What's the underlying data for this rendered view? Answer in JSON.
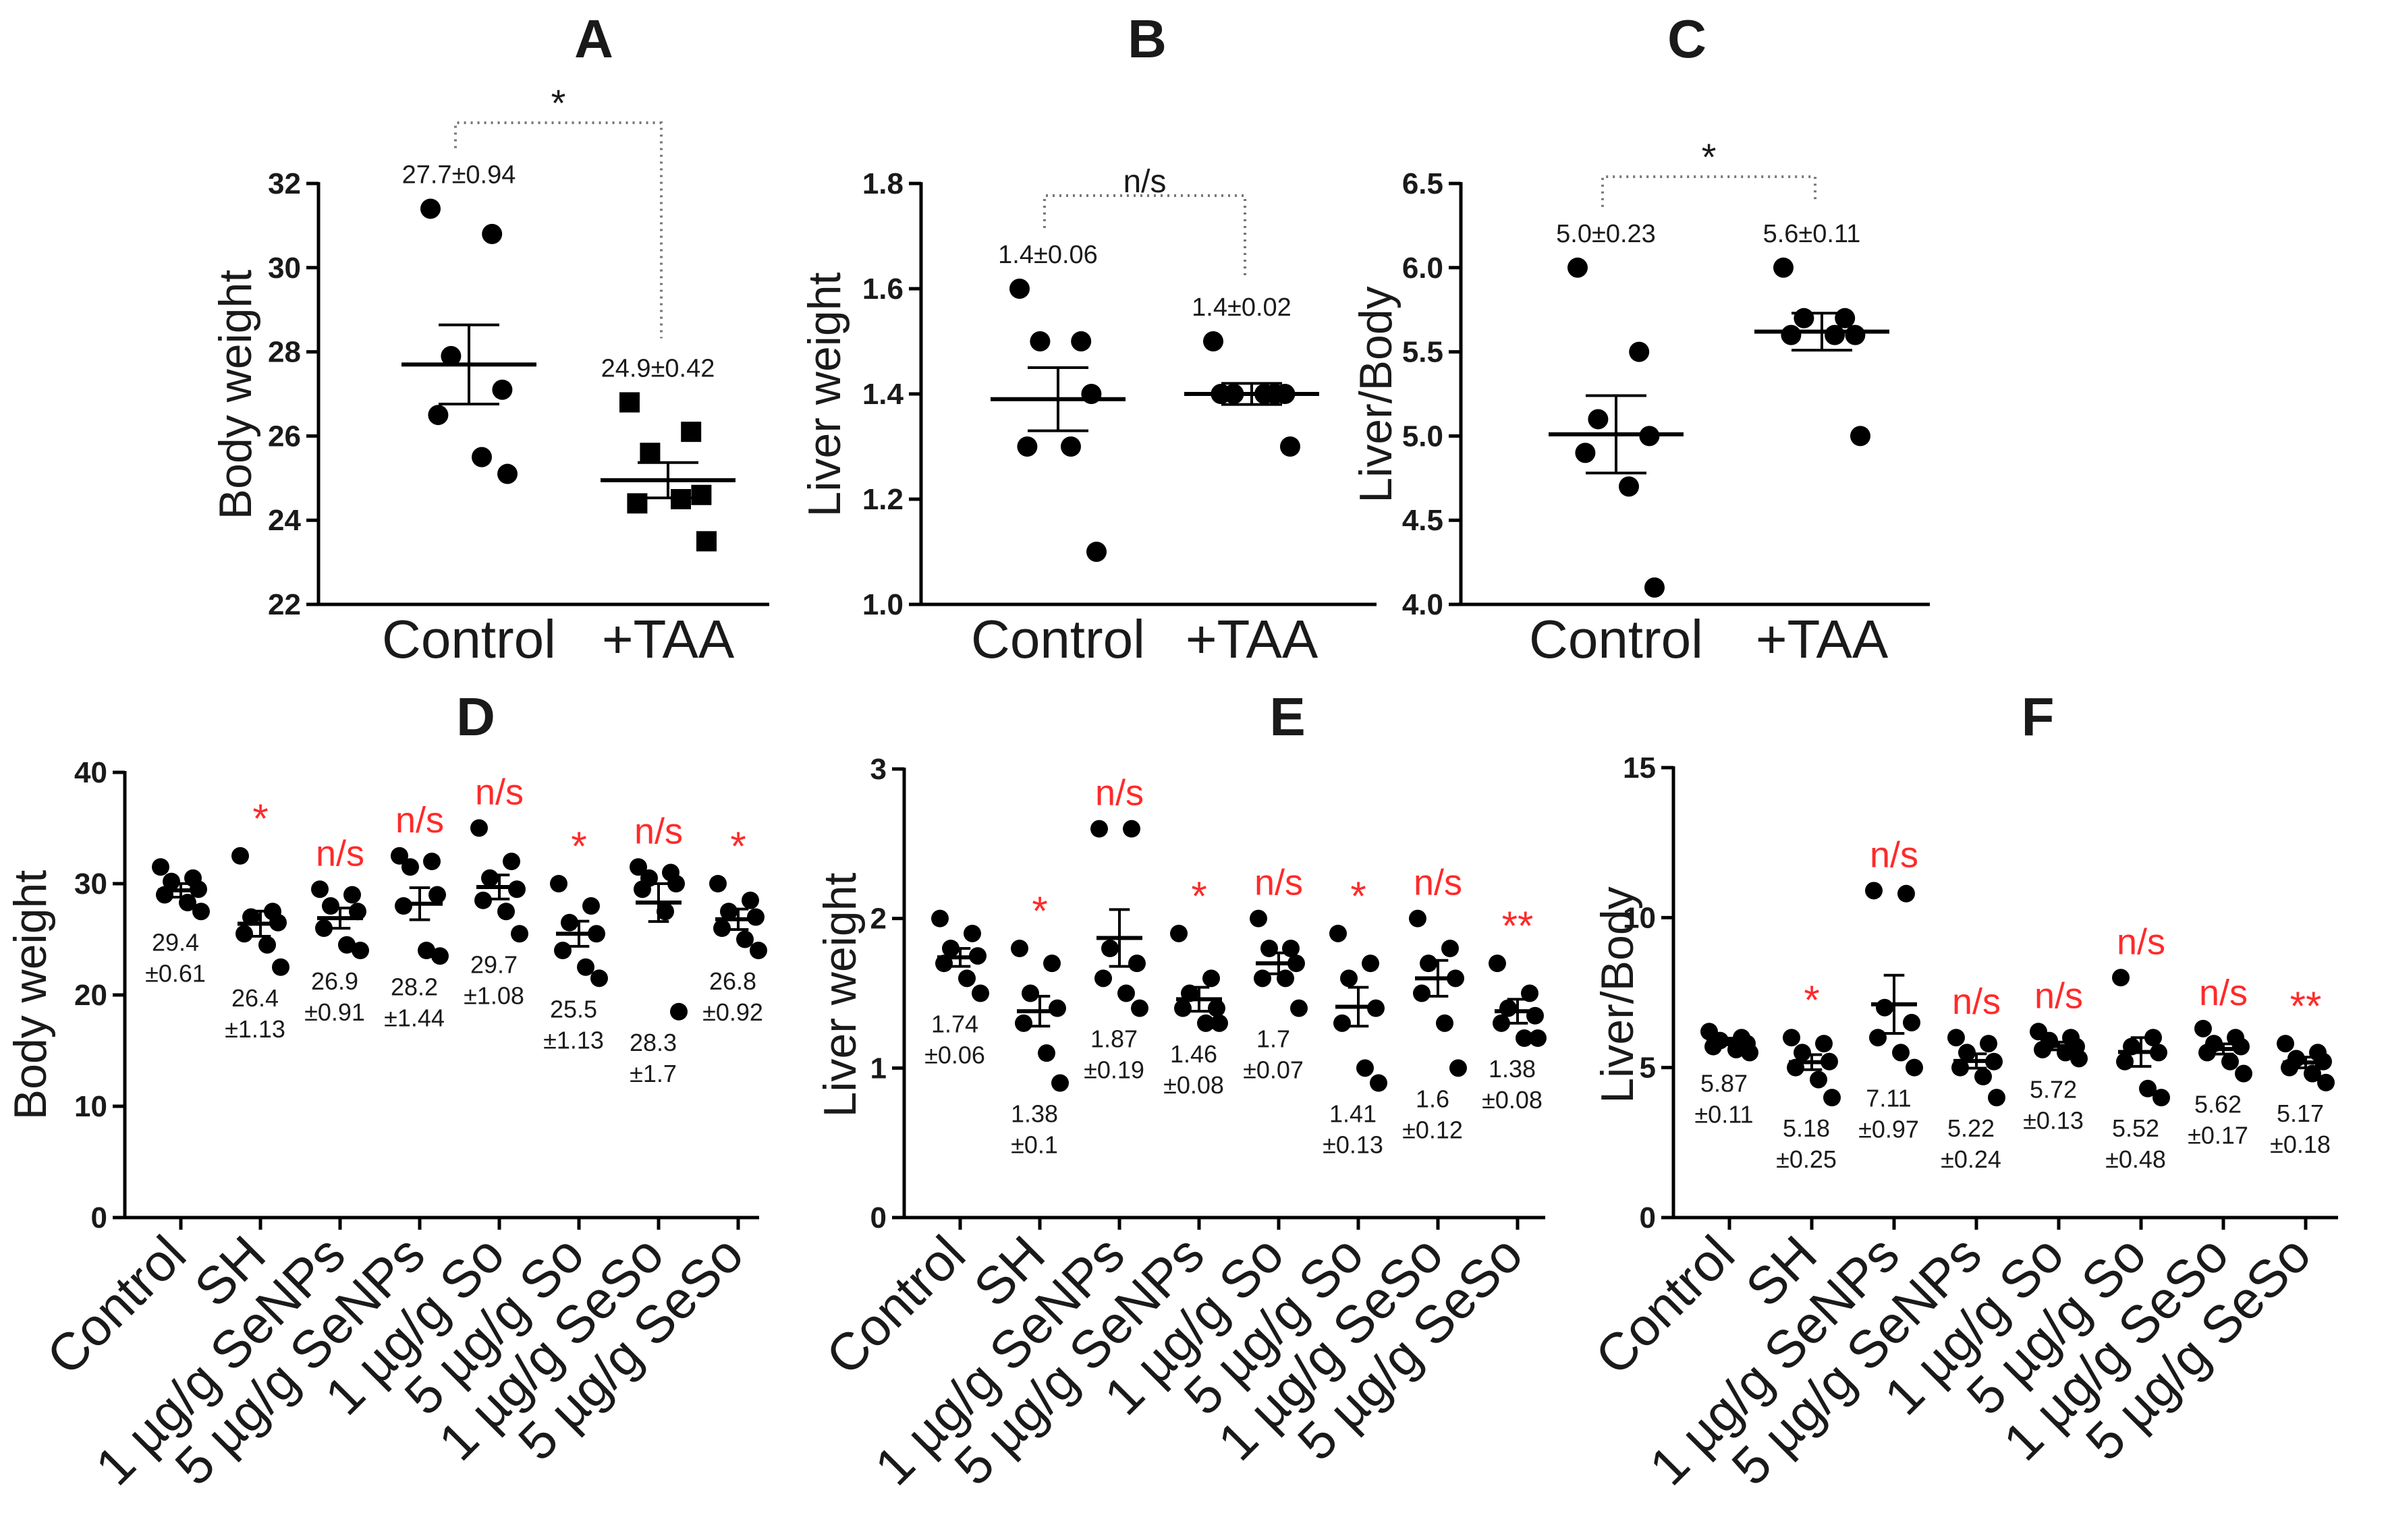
{
  "colors": {
    "ink": "#1a1a1a",
    "significance": "#ff2a2a",
    "bracket": "#777777"
  },
  "chart_data": [
    {
      "panel": "A",
      "type": "scatter",
      "ylabel": "Body weight",
      "ylim": [
        22,
        32
      ],
      "yticks": [
        22,
        24,
        26,
        28,
        30,
        32
      ],
      "ytick_labels": [
        "22",
        "24",
        "26",
        "28",
        "30",
        "32"
      ],
      "categories": [
        "Control",
        "+TAA"
      ],
      "groups": [
        {
          "name": "Control",
          "marker": "circle",
          "points": [
            31.4,
            30.8,
            27.9,
            27.1,
            26.5,
            25.5,
            25.1
          ],
          "mean": 27.7,
          "sem": 0.94,
          "label": "27.7±0.94"
        },
        {
          "name": "+TAA",
          "marker": "square",
          "points": [
            26.8,
            26.1,
            25.6,
            24.6,
            24.4,
            24.5,
            23.5
          ],
          "mean": 24.95,
          "sem": 0.42,
          "label": "24.9±0.42"
        }
      ],
      "comparison": {
        "text": "*"
      }
    },
    {
      "panel": "B",
      "type": "scatter",
      "ylabel": "Liver weight",
      "ylim": [
        1.0,
        1.8
      ],
      "yticks": [
        1.0,
        1.2,
        1.4,
        1.6,
        1.8
      ],
      "ytick_labels": [
        "1.0",
        "1.2",
        "1.4",
        "1.6",
        "1.8"
      ],
      "categories": [
        "Control",
        "+TAA"
      ],
      "groups": [
        {
          "name": "Control",
          "marker": "circle",
          "points": [
            1.6,
            1.5,
            1.5,
            1.4,
            1.3,
            1.3,
            1.1
          ],
          "mean": 1.39,
          "sem": 0.06,
          "label": "1.4±0.06"
        },
        {
          "name": "+TAA",
          "marker": "circle",
          "points": [
            1.5,
            1.4,
            1.4,
            1.4,
            1.4,
            1.4,
            1.3
          ],
          "mean": 1.4,
          "sem": 0.02,
          "label": "1.4±0.02"
        }
      ],
      "comparison": {
        "text": "n/s"
      }
    },
    {
      "panel": "C",
      "type": "scatter",
      "ylabel": "Liver/Body",
      "ylim": [
        4.0,
        6.5
      ],
      "yticks": [
        4.0,
        4.5,
        5.0,
        5.5,
        6.0,
        6.5
      ],
      "ytick_labels": [
        "4.0",
        "4.5",
        "5.0",
        "5.5",
        "6.0",
        "6.5"
      ],
      "categories": [
        "Control",
        "+TAA"
      ],
      "groups": [
        {
          "name": "Control",
          "marker": "circle",
          "points": [
            6.0,
            5.5,
            5.1,
            5.0,
            4.9,
            4.7,
            4.1
          ],
          "mean": 5.01,
          "sem": 0.23,
          "label": "5.0±0.23"
        },
        {
          "name": "+TAA",
          "marker": "circle",
          "points": [
            6.0,
            5.7,
            5.7,
            5.6,
            5.6,
            5.6,
            5.0
          ],
          "mean": 5.62,
          "sem": 0.11,
          "label": "5.6±0.11"
        }
      ],
      "comparison": {
        "text": "*"
      }
    },
    {
      "panel": "D",
      "type": "scatter",
      "ylabel": "Body weight",
      "ylim": [
        0,
        40
      ],
      "yticks": [
        0,
        10,
        20,
        30,
        40
      ],
      "ytick_labels": [
        "0",
        "10",
        "20",
        "30",
        "40"
      ],
      "categories": [
        "Control",
        "SH",
        "1 µg/g SeNPs",
        "5 µg/g SeNPs",
        "1 µg/g So",
        "5 µg/g So",
        "1 µg/g SeSo",
        "5 µg/g SeSo"
      ],
      "groups": [
        {
          "name": "Control",
          "points": [
            31.5,
            30.5,
            30.2,
            29.5,
            29.0,
            28.3,
            27.5
          ],
          "mean": 29.4,
          "sem": 0.61,
          "label": [
            "29.4",
            "±0.61"
          ],
          "sig": ""
        },
        {
          "name": "SH",
          "points": [
            32.5,
            27.5,
            27.0,
            26.5,
            25.5,
            24.5,
            22.5
          ],
          "mean": 26.4,
          "sem": 1.13,
          "label": [
            "26.4",
            "±1.13"
          ],
          "sig": "*"
        },
        {
          "name": "1 µg/g SeNPs",
          "points": [
            29.5,
            29.0,
            28.0,
            27.5,
            26.0,
            24.5,
            24.0
          ],
          "mean": 26.9,
          "sem": 0.91,
          "label": [
            "26.9",
            "±0.91"
          ],
          "sig": "n/s"
        },
        {
          "name": "5 µg/g SeNPs",
          "points": [
            32.5,
            32.0,
            31.5,
            29.0,
            28.0,
            24.0,
            23.5
          ],
          "mean": 28.2,
          "sem": 1.44,
          "label": [
            "28.2",
            "±1.44"
          ],
          "sig": "n/s"
        },
        {
          "name": "1 µg/g So",
          "points": [
            35.0,
            32.0,
            30.5,
            29.5,
            28.5,
            27.5,
            25.5
          ],
          "mean": 29.7,
          "sem": 1.08,
          "label": [
            "29.7",
            "±1.08"
          ],
          "sig": "n/s"
        },
        {
          "name": "5 µg/g So",
          "points": [
            30.0,
            28.0,
            26.5,
            25.5,
            24.0,
            22.5,
            21.5
          ],
          "mean": 25.5,
          "sem": 1.13,
          "label": [
            "25.5",
            "±1.13"
          ],
          "sig": "*"
        },
        {
          "name": "1 µg/g SeSo",
          "points": [
            31.5,
            31.0,
            30.5,
            30.0,
            29.5,
            27.5,
            18.5
          ],
          "mean": 28.3,
          "sem": 1.7,
          "label": [
            "28.3",
            "±1.7"
          ],
          "sig": "n/s"
        },
        {
          "name": "5 µg/g SeSo",
          "points": [
            30.0,
            28.5,
            27.5,
            27.0,
            26.0,
            25.0,
            24.0
          ],
          "mean": 26.8,
          "sem": 0.92,
          "label": [
            "26.8",
            "±0.92"
          ],
          "sig": "*"
        }
      ]
    },
    {
      "panel": "E",
      "type": "scatter",
      "ylabel": "Liver weight",
      "ylim": [
        0,
        3
      ],
      "yticks": [
        0,
        1,
        2,
        3
      ],
      "ytick_labels": [
        "0",
        "1",
        "2",
        "3"
      ],
      "categories": [
        "Control",
        "SH",
        "1 µg/g SeNPs",
        "5 µg/g SeNPs",
        "1 µg/g So",
        "5 µg/g So",
        "1 µg/g SeSo",
        "5 µg/g SeSo"
      ],
      "groups": [
        {
          "name": "Control",
          "points": [
            2.0,
            1.9,
            1.8,
            1.75,
            1.7,
            1.6,
            1.5
          ],
          "mean": 1.74,
          "sem": 0.06,
          "label": [
            "1.74",
            "±0.06"
          ],
          "sig": ""
        },
        {
          "name": "SH",
          "points": [
            1.8,
            1.7,
            1.5,
            1.4,
            1.3,
            1.1,
            0.9
          ],
          "mean": 1.38,
          "sem": 0.1,
          "label": [
            "1.38",
            "±0.1"
          ],
          "sig": "*"
        },
        {
          "name": "1 µg/g SeNPs",
          "points": [
            2.6,
            2.6,
            1.8,
            1.7,
            1.6,
            1.5,
            1.4
          ],
          "mean": 1.87,
          "sem": 0.19,
          "label": [
            "1.87",
            "±0.19"
          ],
          "sig": "n/s"
        },
        {
          "name": "5 µg/g SeNPs",
          "points": [
            1.9,
            1.6,
            1.5,
            1.4,
            1.4,
            1.3,
            1.3
          ],
          "mean": 1.46,
          "sem": 0.08,
          "label": [
            "1.46",
            "±0.08"
          ],
          "sig": "*"
        },
        {
          "name": "1 µg/g So",
          "points": [
            2.0,
            1.8,
            1.8,
            1.7,
            1.6,
            1.6,
            1.4
          ],
          "mean": 1.7,
          "sem": 0.07,
          "label": [
            "1.7",
            "±0.07"
          ],
          "sig": "n/s"
        },
        {
          "name": "5 µg/g So",
          "points": [
            1.9,
            1.7,
            1.6,
            1.4,
            1.3,
            1.0,
            0.9
          ],
          "mean": 1.41,
          "sem": 0.13,
          "label": [
            "1.41",
            "±0.13"
          ],
          "sig": "*"
        },
        {
          "name": "1 µg/g SeSo",
          "points": [
            2.0,
            1.8,
            1.7,
            1.6,
            1.5,
            1.3,
            1.0
          ],
          "mean": 1.6,
          "sem": 0.12,
          "label": [
            "1.6",
            "±0.12"
          ],
          "sig": "n/s"
        },
        {
          "name": "5 µg/g SeSo",
          "points": [
            1.7,
            1.5,
            1.4,
            1.35,
            1.3,
            1.2,
            1.2
          ],
          "mean": 1.38,
          "sem": 0.08,
          "label": [
            "1.38",
            "±0.08"
          ],
          "sig": "**"
        }
      ]
    },
    {
      "panel": "F",
      "type": "scatter",
      "ylabel": "Liver/Body",
      "ylim": [
        0,
        15
      ],
      "yticks": [
        0,
        5,
        10,
        15
      ],
      "ytick_labels": [
        "0",
        "5",
        "10",
        "15"
      ],
      "categories": [
        "Control",
        "SH",
        "1 µg/g SeNPs",
        "5 µg/g SeNPs",
        "1 µg/g So",
        "5 µg/g So",
        "1 µg/g SeSo",
        "5 µg/g SeSo"
      ],
      "groups": [
        {
          "name": "Control",
          "points": [
            6.2,
            6.0,
            5.9,
            5.8,
            5.7,
            5.6,
            5.5
          ],
          "mean": 5.87,
          "sem": 0.11,
          "label": [
            "5.87",
            "±0.11"
          ],
          "sig": ""
        },
        {
          "name": "SH",
          "points": [
            6.0,
            5.8,
            5.5,
            5.2,
            5.0,
            4.6,
            4.0
          ],
          "mean": 5.18,
          "sem": 0.25,
          "label": [
            "5.18",
            "±0.25"
          ],
          "sig": "*"
        },
        {
          "name": "1 µg/g SeNPs",
          "points": [
            10.9,
            10.8,
            7.0,
            6.5,
            6.0,
            5.5,
            5.0
          ],
          "mean": 7.11,
          "sem": 0.97,
          "label": [
            "7.11",
            "±0.97"
          ],
          "sig": "n/s"
        },
        {
          "name": "5 µg/g SeNPs",
          "points": [
            6.0,
            5.8,
            5.5,
            5.2,
            5.0,
            4.7,
            4.0
          ],
          "mean": 5.22,
          "sem": 0.24,
          "label": [
            "5.22",
            "±0.24"
          ],
          "sig": "n/s"
        },
        {
          "name": "1 µg/g So",
          "points": [
            6.2,
            6.0,
            5.9,
            5.7,
            5.6,
            5.5,
            5.3
          ],
          "mean": 5.72,
          "sem": 0.13,
          "label": [
            "5.72",
            "±0.13"
          ],
          "sig": "n/s"
        },
        {
          "name": "5 µg/g So",
          "points": [
            8.0,
            6.0,
            5.7,
            5.5,
            5.2,
            4.3,
            4.0
          ],
          "mean": 5.52,
          "sem": 0.48,
          "label": [
            "5.52",
            "±0.48"
          ],
          "sig": "n/s"
        },
        {
          "name": "1 µg/g SeSo",
          "points": [
            6.3,
            6.0,
            5.8,
            5.7,
            5.5,
            5.2,
            4.8
          ],
          "mean": 5.62,
          "sem": 0.17,
          "label": [
            "5.62",
            "±0.17"
          ],
          "sig": "n/s"
        },
        {
          "name": "5 µg/g SeSo",
          "points": [
            5.8,
            5.5,
            5.3,
            5.2,
            5.0,
            4.8,
            4.5
          ],
          "mean": 5.17,
          "sem": 0.18,
          "label": [
            "5.17",
            "±0.18"
          ],
          "sig": "**"
        }
      ]
    }
  ]
}
